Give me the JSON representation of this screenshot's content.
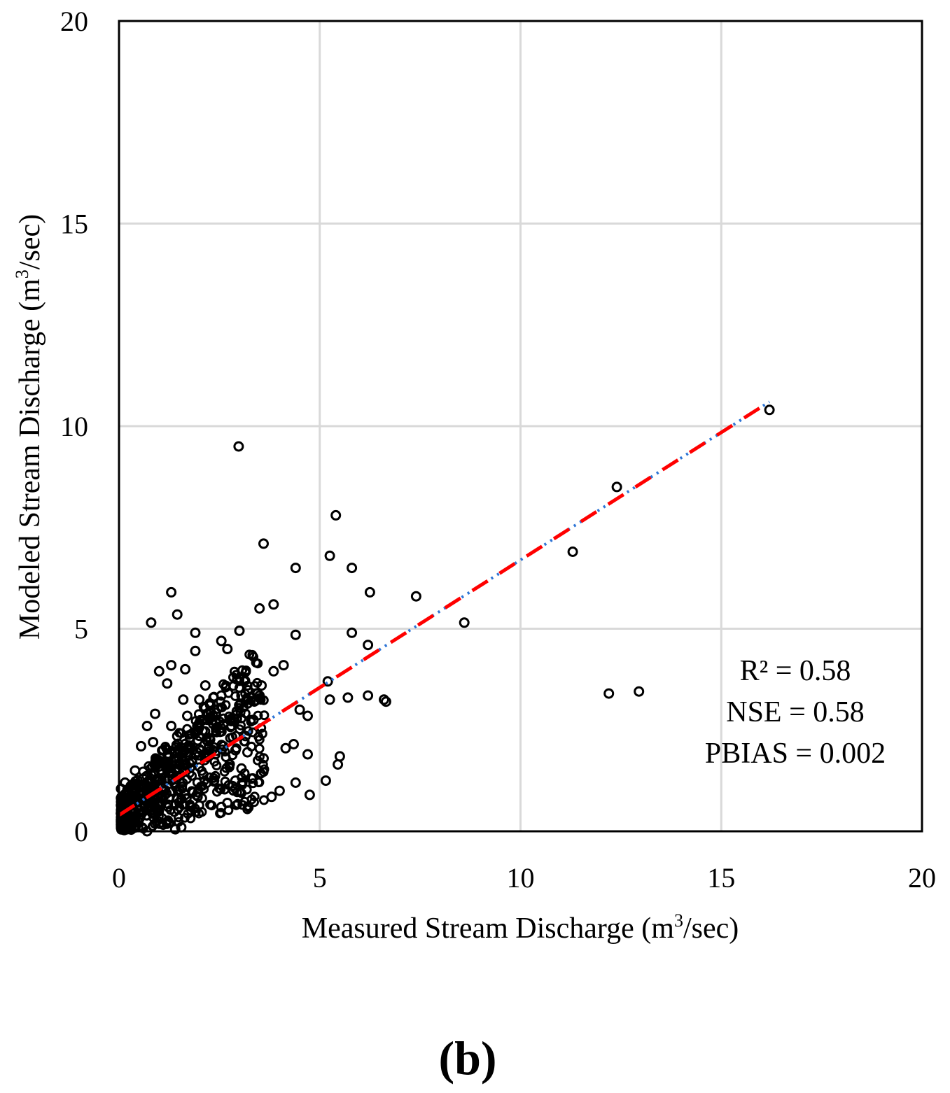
{
  "chart_data": {
    "type": "scatter",
    "panel_label": "(b)",
    "xlabel": {
      "main": "Measured Stream Discharge (m",
      "sup": "3",
      "end": "/sec)"
    },
    "ylabel": {
      "main": "Modeled Stream Discharge (m",
      "sup": "3",
      "end": "/sec)"
    },
    "xlim": [
      0,
      20
    ],
    "ylim": [
      0,
      20
    ],
    "xticks": [
      0,
      5,
      10,
      15,
      20
    ],
    "yticks": [
      0,
      5,
      10,
      15,
      20
    ],
    "xtick_labels": [
      "0",
      "5",
      "10",
      "15",
      "20"
    ],
    "ytick_labels": [
      "0",
      "5",
      "10",
      "15",
      "20"
    ],
    "grid": true,
    "annotations": {
      "r2": "R² = 0.58",
      "nse": "NSE = 0.58",
      "pbias": "PBIAS =  0.002"
    },
    "trendline": {
      "x0": 0,
      "y0": 0.4,
      "x1": 16.2,
      "y1": 10.6,
      "color": "#ff0000",
      "overlay_color": "#2e75d6"
    },
    "marker_color": "#000000",
    "cluster": {
      "note": "dense cloud of low-flow points (about 600 observations) concentrated between 0 and 4 m3/sec measured, 0 to 4 m3/sec modeled"
    },
    "points": [
      [
        16.2,
        10.4
      ],
      [
        12.4,
        8.5
      ],
      [
        11.3,
        6.9
      ],
      [
        2.98,
        9.5
      ],
      [
        5.4,
        7.8
      ],
      [
        3.6,
        7.1
      ],
      [
        5.25,
        6.8
      ],
      [
        5.8,
        6.5
      ],
      [
        4.4,
        6.5
      ],
      [
        6.25,
        5.9
      ],
      [
        7.4,
        5.8
      ],
      [
        8.6,
        5.15
      ],
      [
        1.3,
        5.9
      ],
      [
        1.45,
        5.35
      ],
      [
        0.8,
        5.15
      ],
      [
        3.5,
        5.5
      ],
      [
        3.85,
        5.6
      ],
      [
        3.0,
        4.95
      ],
      [
        5.8,
        4.9
      ],
      [
        4.4,
        4.85
      ],
      [
        6.2,
        4.6
      ],
      [
        2.55,
        4.7
      ],
      [
        2.7,
        4.5
      ],
      [
        1.9,
        4.9
      ],
      [
        1.3,
        4.1
      ],
      [
        1.65,
        4.0
      ],
      [
        1.0,
        3.95
      ],
      [
        1.9,
        4.45
      ],
      [
        4.1,
        4.1
      ],
      [
        3.85,
        3.95
      ],
      [
        5.2,
        3.7
      ],
      [
        5.25,
        3.25
      ],
      [
        5.7,
        3.3
      ],
      [
        6.2,
        3.35
      ],
      [
        6.65,
        3.2
      ],
      [
        6.6,
        3.25
      ],
      [
        12.2,
        3.4
      ],
      [
        12.95,
        3.45
      ],
      [
        4.5,
        3.0
      ],
      [
        4.7,
        2.85
      ],
      [
        4.7,
        1.9
      ],
      [
        5.5,
        1.85
      ],
      [
        5.45,
        1.65
      ],
      [
        5.15,
        1.25
      ],
      [
        4.75,
        0.9
      ],
      [
        4.4,
        1.2
      ],
      [
        3.8,
        0.85
      ],
      [
        4.0,
        1.0
      ],
      [
        3.6,
        1.8
      ],
      [
        4.15,
        2.05
      ],
      [
        4.35,
        2.15
      ],
      [
        3.3,
        1.3
      ],
      [
        3.05,
        1.55
      ],
      [
        2.75,
        1.65
      ],
      [
        2.9,
        1.25
      ],
      [
        2.55,
        0.6
      ],
      [
        2.8,
        2.6
      ],
      [
        3.15,
        2.35
      ],
      [
        3.35,
        2.75
      ],
      [
        3.5,
        3.35
      ],
      [
        3.55,
        3.6
      ],
      [
        3.45,
        3.4
      ],
      [
        2.15,
        3.6
      ],
      [
        2.0,
        3.25
      ],
      [
        2.35,
        3.3
      ],
      [
        2.55,
        3.35
      ],
      [
        3.05,
        3.35
      ],
      [
        1.6,
        3.25
      ],
      [
        1.2,
        3.65
      ],
      [
        1.3,
        2.6
      ],
      [
        1.7,
        2.85
      ],
      [
        0.7,
        2.6
      ],
      [
        0.55,
        2.1
      ],
      [
        0.9,
        2.9
      ],
      [
        0.4,
        1.5
      ],
      [
        0.3,
        0.9
      ],
      [
        0.85,
        2.2
      ],
      [
        1.8,
        2.05
      ],
      [
        2.2,
        2.75
      ],
      [
        2.6,
        2.1
      ],
      [
        1.5,
        1.55
      ],
      [
        1.1,
        1.0
      ],
      [
        0.95,
        0.5
      ],
      [
        1.4,
        0.05
      ],
      [
        1.55,
        0.1
      ],
      [
        0.7,
        0.0
      ],
      [
        0.2,
        0.05
      ],
      [
        0.05,
        1.05
      ],
      [
        0.15,
        1.2
      ],
      [
        1.25,
        1.85
      ],
      [
        2.1,
        1.4
      ],
      [
        1.65,
        0.9
      ],
      [
        2.4,
        1.9
      ],
      [
        2.9,
        2.0
      ],
      [
        1.0,
        1.6
      ],
      [
        0.45,
        0.6
      ],
      [
        0.6,
        1.3
      ],
      [
        1.95,
        2.6
      ],
      [
        2.25,
        2.3
      ],
      [
        1.45,
        2.35
      ],
      [
        3.2,
        1.95
      ],
      [
        2.7,
        0.7
      ]
    ]
  }
}
